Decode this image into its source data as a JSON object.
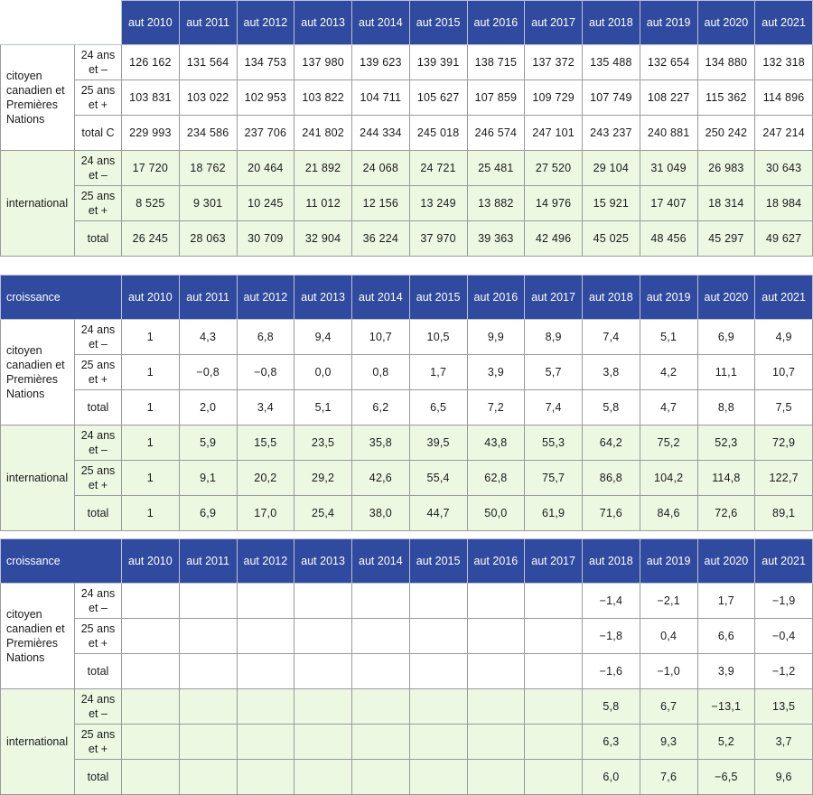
{
  "years": [
    "aut 2010",
    "aut 2011",
    "aut 2012",
    "aut 2013",
    "aut 2014",
    "aut 2015",
    "aut 2016",
    "aut 2017",
    "aut 2018",
    "aut 2019",
    "aut 2020",
    "aut 2021"
  ],
  "groups": {
    "citizen": "citoyen canadien et Premières Nations",
    "international": "international"
  },
  "sub_labels": {
    "young": "24 ans et –",
    "old": "25 ans et +",
    "total_c": "total C",
    "total": "total"
  },
  "tables": [
    {
      "corner": "",
      "rows": [
        {
          "group": "citizen",
          "sub": "young",
          "values": [
            "126 162",
            "131 564",
            "134 753",
            "137 980",
            "139 623",
            "139 391",
            "138 715",
            "137 372",
            "135 488",
            "132 654",
            "134 880",
            "132 318"
          ]
        },
        {
          "group": "citizen",
          "sub": "old",
          "values": [
            "103 831",
            "103 022",
            "102 953",
            "103 822",
            "104 711",
            "105 627",
            "107 859",
            "109 729",
            "107 749",
            "108 227",
            "115 362",
            "114 896"
          ]
        },
        {
          "group": "citizen",
          "sub": "total_c",
          "values": [
            "229 993",
            "234 586",
            "237 706",
            "241 802",
            "244 334",
            "245 018",
            "246 574",
            "247 101",
            "243 237",
            "240 881",
            "250 242",
            "247 214"
          ]
        },
        {
          "group": "international",
          "sub": "young",
          "values": [
            "17 720",
            "18 762",
            "20 464",
            "21 892",
            "24 068",
            "24 721",
            "25 481",
            "27 520",
            "29 104",
            "31 049",
            "26 983",
            "30 643"
          ]
        },
        {
          "group": "international",
          "sub": "old",
          "values": [
            "8 525",
            "9 301",
            "10 245",
            "11 012",
            "12 156",
            "13 249",
            "13 882",
            "14 976",
            "15 921",
            "17 407",
            "18 314",
            "18 984"
          ]
        },
        {
          "group": "international",
          "sub": "total",
          "values": [
            "26 245",
            "28 063",
            "30 709",
            "32 904",
            "36 224",
            "37 970",
            "39 363",
            "42 496",
            "45 025",
            "48 456",
            "45 297",
            "49 627"
          ]
        }
      ]
    },
    {
      "corner": "croissance",
      "rows": [
        {
          "group": "citizen",
          "sub": "young",
          "values": [
            "1",
            "4,3",
            "6,8",
            "9,4",
            "10,7",
            "10,5",
            "9,9",
            "8,9",
            "7,4",
            "5,1",
            "6,9",
            "4,9"
          ]
        },
        {
          "group": "citizen",
          "sub": "old",
          "values": [
            "1",
            "−0,8",
            "−0,8",
            "0,0",
            "0,8",
            "1,7",
            "3,9",
            "5,7",
            "3,8",
            "4,2",
            "11,1",
            "10,7"
          ]
        },
        {
          "group": "citizen",
          "sub": "total",
          "values": [
            "1",
            "2,0",
            "3,4",
            "5,1",
            "6,2",
            "6,5",
            "7,2",
            "7,4",
            "5,8",
            "4,7",
            "8,8",
            "7,5"
          ]
        },
        {
          "group": "international",
          "sub": "young",
          "values": [
            "1",
            "5,9",
            "15,5",
            "23,5",
            "35,8",
            "39,5",
            "43,8",
            "55,3",
            "64,2",
            "75,2",
            "52,3",
            "72,9"
          ]
        },
        {
          "group": "international",
          "sub": "old",
          "values": [
            "1",
            "9,1",
            "20,2",
            "29,2",
            "42,6",
            "55,4",
            "62,8",
            "75,7",
            "86,8",
            "104,2",
            "114,8",
            "122,7"
          ]
        },
        {
          "group": "international",
          "sub": "total",
          "values": [
            "1",
            "6,9",
            "17,0",
            "25,4",
            "38,0",
            "44,7",
            "50,0",
            "61,9",
            "71,6",
            "84,6",
            "72,6",
            "89,1"
          ]
        }
      ]
    },
    {
      "corner": "croissance",
      "rows": [
        {
          "group": "citizen",
          "sub": "young",
          "values": [
            "",
            "",
            "",
            "",
            "",
            "",
            "",
            "",
            "−1,4",
            "−2,1",
            "1,7",
            "−1,9"
          ]
        },
        {
          "group": "citizen",
          "sub": "old",
          "values": [
            "",
            "",
            "",
            "",
            "",
            "",
            "",
            "",
            "−1,8",
            "0,4",
            "6,6",
            "−0,4"
          ]
        },
        {
          "group": "citizen",
          "sub": "total",
          "values": [
            "",
            "",
            "",
            "",
            "",
            "",
            "",
            "",
            "−1,6",
            "−1,0",
            "3,9",
            "−1,2"
          ]
        },
        {
          "group": "international",
          "sub": "young",
          "values": [
            "",
            "",
            "",
            "",
            "",
            "",
            "",
            "",
            "5,8",
            "6,7",
            "−13,1",
            "13,5"
          ]
        },
        {
          "group": "international",
          "sub": "old",
          "values": [
            "",
            "",
            "",
            "",
            "",
            "",
            "",
            "",
            "6,3",
            "9,3",
            "5,2",
            "3,7"
          ]
        },
        {
          "group": "international",
          "sub": "total",
          "values": [
            "",
            "",
            "",
            "",
            "",
            "",
            "",
            "",
            "6,0",
            "7,6",
            "−6,5",
            "9,6"
          ]
        }
      ]
    }
  ]
}
